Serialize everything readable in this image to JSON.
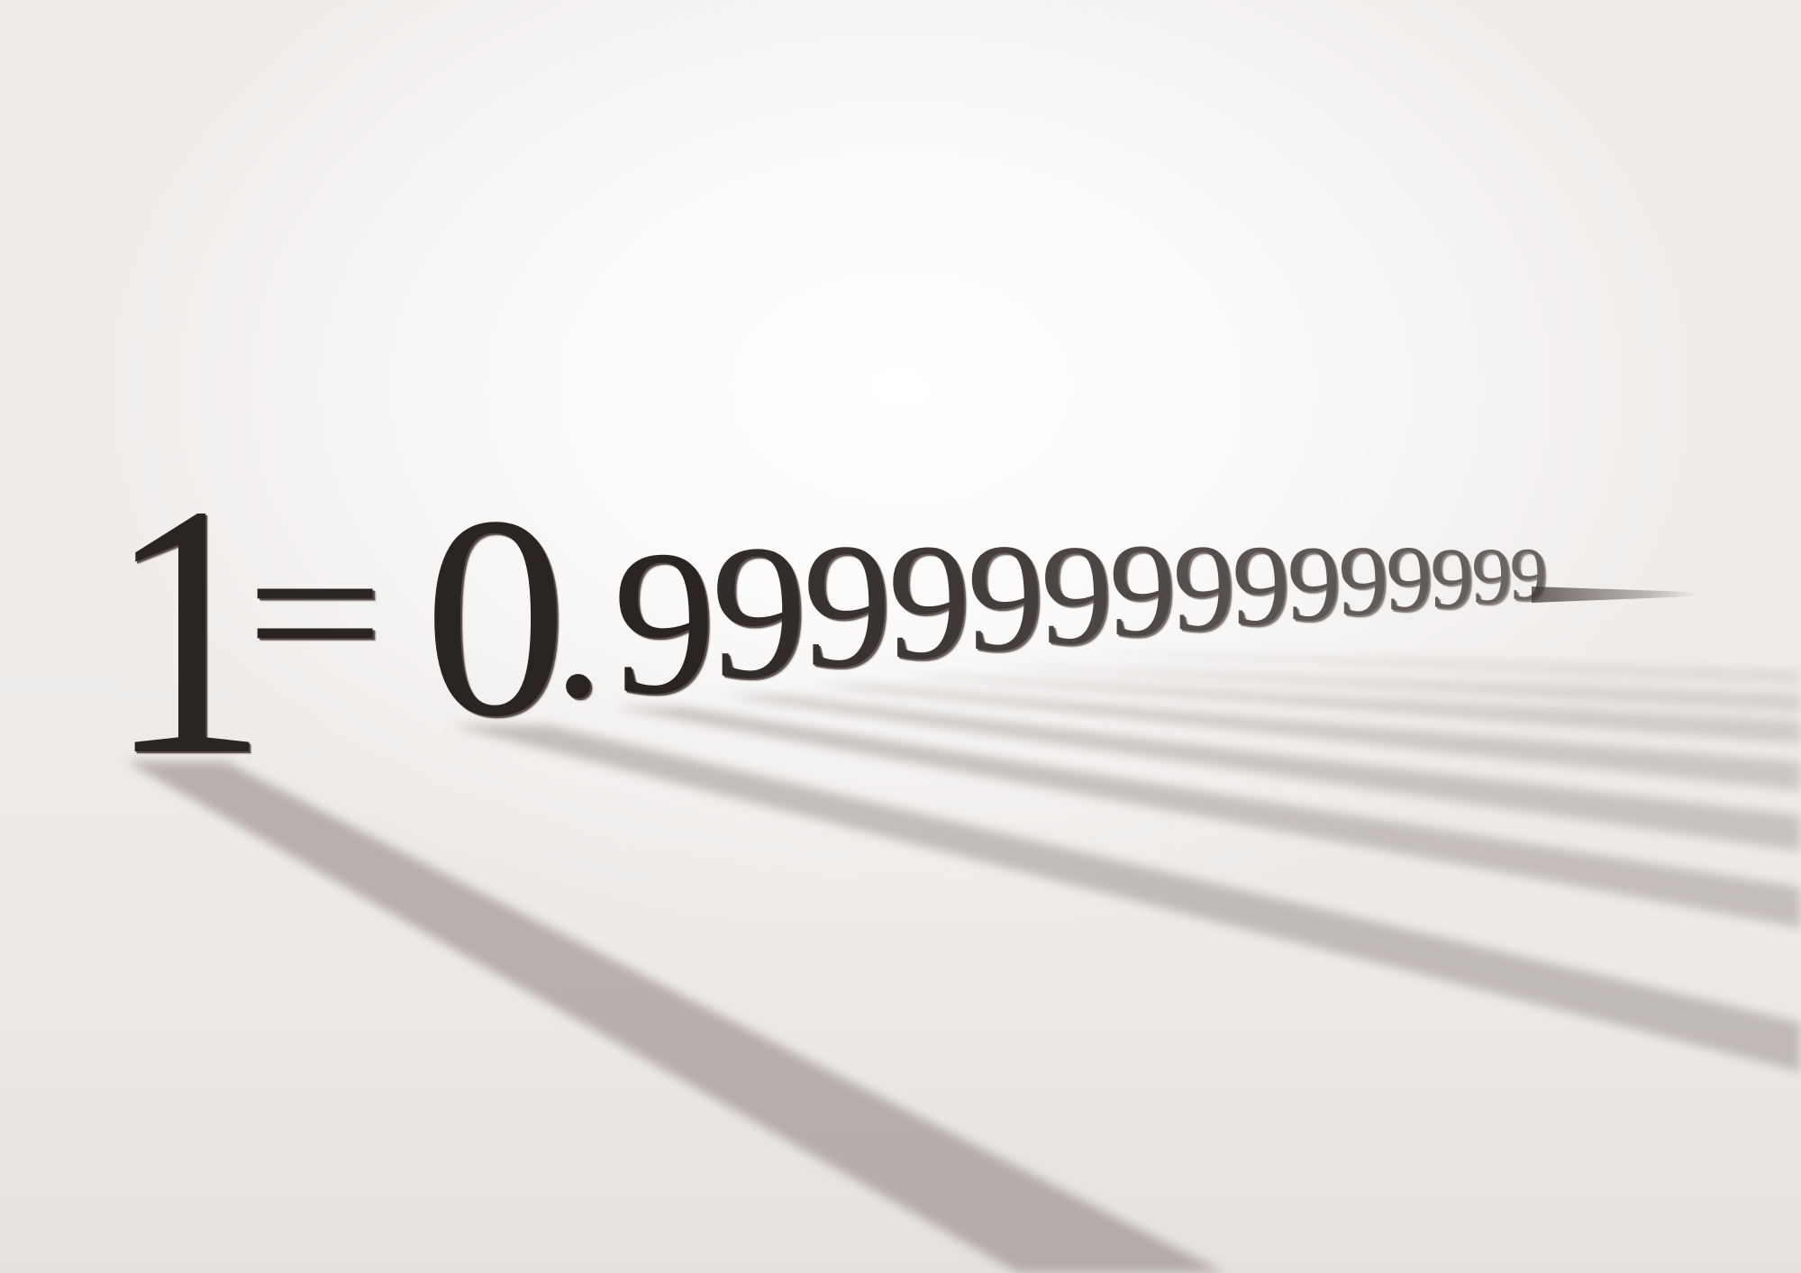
{
  "equation": {
    "one": "1",
    "equals": "=",
    "zero": "0",
    "point": ".",
    "nine": "9",
    "text": "1 = 0.999999999..."
  },
  "colors": {
    "glyph": "#2a2422",
    "shadow": "#8a807c",
    "background": "#f7f5f4"
  }
}
